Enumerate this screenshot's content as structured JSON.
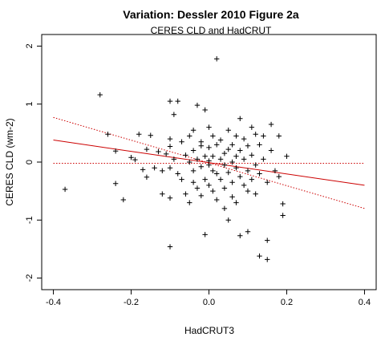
{
  "chart_data": {
    "type": "scatter",
    "title": "Variation: Dessler 2010 Figure 2a",
    "subtitle": "CERES CLD and HadCRUT",
    "xlabel": "HadCRUT3",
    "ylabel": "CERES CLD (wm-2)",
    "xlim": [
      -0.43,
      0.43
    ],
    "ylim": [
      -2.2,
      2.2
    ],
    "xticks": [
      -0.4,
      -0.2,
      0.0,
      0.2,
      0.4
    ],
    "xtick_labels": [
      "-0.4",
      "-0.2",
      "0.0",
      "0.2",
      "0.4"
    ],
    "yticks": [
      -2,
      -1,
      0,
      1,
      2
    ],
    "ytick_labels": [
      "-2",
      "-1",
      "0",
      "1",
      "2"
    ],
    "grid": false,
    "colors": {
      "points": "#000000",
      "lines": "#cc0000"
    },
    "points": [
      [
        -0.37,
        -0.47
      ],
      [
        -0.28,
        1.16
      ],
      [
        -0.26,
        0.48
      ],
      [
        -0.24,
        -0.37
      ],
      [
        -0.24,
        0.19
      ],
      [
        -0.22,
        -0.65
      ],
      [
        -0.2,
        0.08
      ],
      [
        -0.19,
        0.04
      ],
      [
        -0.18,
        0.48
      ],
      [
        -0.17,
        -0.13
      ],
      [
        -0.16,
        0.22
      ],
      [
        -0.16,
        -0.26
      ],
      [
        -0.15,
        0.46
      ],
      [
        -0.14,
        -0.1
      ],
      [
        -0.13,
        0.18
      ],
      [
        -0.12,
        -0.15
      ],
      [
        -0.12,
        -0.55
      ],
      [
        -0.11,
        0.14
      ],
      [
        -0.1,
        0.4
      ],
      [
        -0.1,
        -0.1
      ],
      [
        -0.1,
        0.27
      ],
      [
        -0.1,
        -0.62
      ],
      [
        -0.1,
        -1.46
      ],
      [
        -0.1,
        1.05
      ],
      [
        -0.09,
        0.05
      ],
      [
        -0.09,
        0.82
      ],
      [
        -0.08,
        -0.2
      ],
      [
        -0.08,
        1.05
      ],
      [
        -0.07,
        0.35
      ],
      [
        -0.07,
        -0.3
      ],
      [
        -0.06,
        0.12
      ],
      [
        -0.06,
        -0.55
      ],
      [
        -0.05,
        0.0
      ],
      [
        -0.05,
        -0.7
      ],
      [
        -0.05,
        0.45
      ],
      [
        -0.04,
        -0.15
      ],
      [
        -0.04,
        0.2
      ],
      [
        -0.04,
        0.55
      ],
      [
        -0.04,
        -0.35
      ],
      [
        -0.03,
        0.98
      ],
      [
        -0.03,
        -0.45
      ],
      [
        -0.03,
        0.05
      ],
      [
        -0.02,
        0.28
      ],
      [
        -0.02,
        -0.08
      ],
      [
        -0.02,
        -0.58
      ],
      [
        -0.02,
        0.35
      ],
      [
        -0.01,
        0.9
      ],
      [
        -0.01,
        0.1
      ],
      [
        -0.01,
        -0.3
      ],
      [
        -0.01,
        -1.25
      ],
      [
        0.0,
        0.25
      ],
      [
        0.0,
        -0.05
      ],
      [
        0.0,
        0.6
      ],
      [
        0.0,
        -0.4
      ],
      [
        0.0,
        0.02
      ],
      [
        0.01,
        0.45
      ],
      [
        0.01,
        -0.15
      ],
      [
        0.01,
        0.1
      ],
      [
        0.01,
        -0.5
      ],
      [
        0.02,
        1.78
      ],
      [
        0.02,
        0.3
      ],
      [
        0.02,
        -0.2
      ],
      [
        0.02,
        -0.65
      ],
      [
        0.03,
        0.05
      ],
      [
        0.03,
        0.38
      ],
      [
        0.03,
        -0.3
      ],
      [
        0.04,
        0.15
      ],
      [
        0.04,
        -0.05
      ],
      [
        0.04,
        -0.45
      ],
      [
        0.04,
        -0.8
      ],
      [
        0.05,
        0.55
      ],
      [
        0.05,
        0.22
      ],
      [
        0.05,
        -0.18
      ],
      [
        0.05,
        -1.0
      ],
      [
        0.06,
        0.0
      ],
      [
        0.06,
        0.3
      ],
      [
        0.06,
        -0.35
      ],
      [
        0.06,
        -0.6
      ],
      [
        0.07,
        0.45
      ],
      [
        0.07,
        0.1
      ],
      [
        0.07,
        -0.1
      ],
      [
        0.07,
        -0.7
      ],
      [
        0.08,
        0.75
      ],
      [
        0.08,
        0.2
      ],
      [
        0.08,
        -0.25
      ],
      [
        0.08,
        -1.27
      ],
      [
        0.09,
        0.05
      ],
      [
        0.09,
        0.4
      ],
      [
        0.09,
        -0.4
      ],
      [
        0.1,
        0.28
      ],
      [
        0.1,
        -0.15
      ],
      [
        0.1,
        -0.5
      ],
      [
        0.1,
        -1.2
      ],
      [
        0.11,
        0.6
      ],
      [
        0.11,
        0.12
      ],
      [
        0.11,
        -0.3
      ],
      [
        0.12,
        0.48
      ],
      [
        0.12,
        -0.05
      ],
      [
        0.12,
        -0.55
      ],
      [
        0.13,
        0.3
      ],
      [
        0.13,
        -0.2
      ],
      [
        0.13,
        -1.62
      ],
      [
        0.14,
        0.45
      ],
      [
        0.14,
        0.05
      ],
      [
        0.15,
        -0.35
      ],
      [
        0.15,
        -1.35
      ],
      [
        0.15,
        -1.68
      ],
      [
        0.16,
        0.65
      ],
      [
        0.16,
        0.2
      ],
      [
        0.17,
        -0.15
      ],
      [
        0.18,
        0.45
      ],
      [
        0.18,
        -0.25
      ],
      [
        0.19,
        -0.72
      ],
      [
        0.19,
        -0.92
      ],
      [
        0.2,
        0.1
      ]
    ],
    "lines": [
      {
        "style": "solid",
        "x": [
          -0.4,
          0.4
        ],
        "y": [
          0.38,
          -0.4
        ]
      },
      {
        "style": "dotted",
        "x": [
          -0.4,
          0.4
        ],
        "y": [
          0.77,
          -0.8
        ]
      },
      {
        "style": "dotted",
        "x": [
          -0.4,
          0.4
        ],
        "y": [
          -0.02,
          -0.02
        ]
      }
    ]
  }
}
